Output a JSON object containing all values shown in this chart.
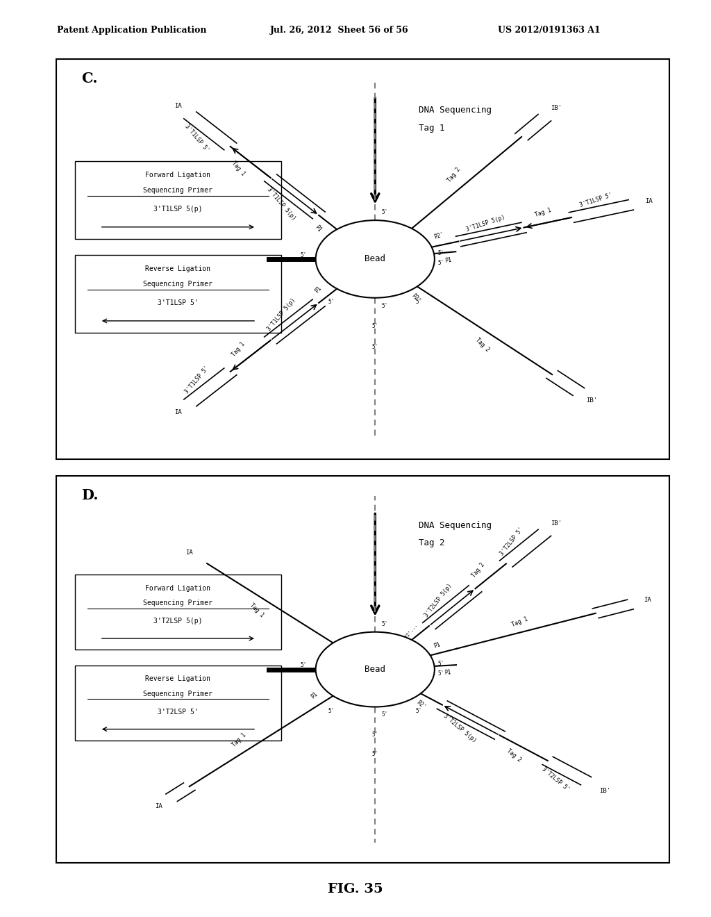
{
  "title": "FIG. 35",
  "header_left": "Patent Application Publication",
  "header_mid": "Jul. 26, 2012  Sheet 56 of 56",
  "header_right": "US 2012/0191363 A1",
  "bg_color": "#ffffff",
  "font_size_header": 9,
  "font_size_fig": 14
}
